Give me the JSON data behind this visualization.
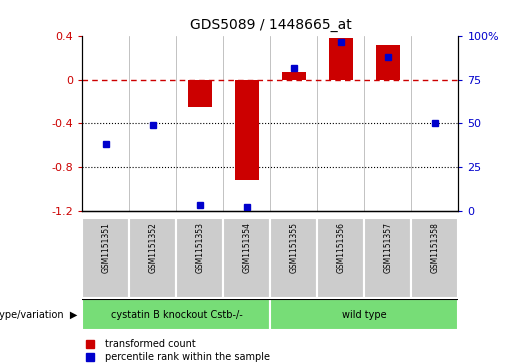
{
  "title": "GDS5089 / 1448665_at",
  "samples": [
    "GSM1151351",
    "GSM1151352",
    "GSM1151353",
    "GSM1151354",
    "GSM1151355",
    "GSM1151356",
    "GSM1151357",
    "GSM1151358"
  ],
  "red_values": [
    0.0,
    0.0,
    -0.25,
    -0.92,
    0.07,
    0.38,
    0.32,
    0.0
  ],
  "blue_values": [
    38,
    49,
    3,
    2,
    82,
    97,
    88,
    50
  ],
  "ylim_left": [
    -1.2,
    0.4
  ],
  "ylim_right": [
    0,
    100
  ],
  "yticks_left": [
    0.4,
    0,
    -0.4,
    -0.8,
    -1.2
  ],
  "yticks_right": [
    100,
    75,
    50,
    25,
    0
  ],
  "group1_label": "cystatin B knockout Cstb-/-",
  "group2_label": "wild type",
  "group1_indices": [
    0,
    1,
    2,
    3
  ],
  "group2_indices": [
    4,
    5,
    6,
    7
  ],
  "genotype_label": "genotype/variation",
  "legend1": "transformed count",
  "legend2": "percentile rank within the sample",
  "red_color": "#cc0000",
  "blue_color": "#0000cc",
  "green_color": "#77dd77",
  "gray_color": "#cccccc",
  "bar_width": 0.5,
  "blue_marker_size": 5,
  "figsize": [
    5.15,
    3.63
  ],
  "dpi": 100
}
